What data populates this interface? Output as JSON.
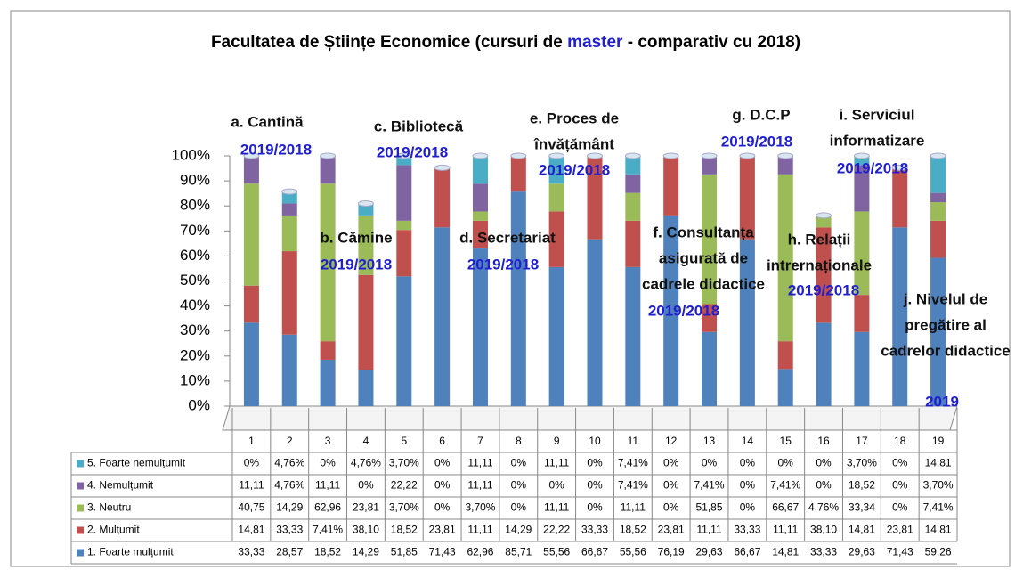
{
  "chart_data": {
    "type": "stacked_bar",
    "title_parts": [
      "Facultatea de Științe Economice (cursuri de ",
      "master",
      " - comparativ cu 2018)"
    ],
    "categories": [
      "1",
      "2",
      "3",
      "4",
      "5",
      "6",
      "7",
      "8",
      "9",
      "10",
      "11",
      "12",
      "13",
      "14",
      "15",
      "16",
      "17",
      "18",
      "19"
    ],
    "series": [
      {
        "name": "1. Foarte mulțumit",
        "color": "#4f81bd",
        "values": [
          33.33,
          28.57,
          18.52,
          14.29,
          51.85,
          71.43,
          62.96,
          85.71,
          55.56,
          66.67,
          55.56,
          76.19,
          29.63,
          66.67,
          14.81,
          33.33,
          29.63,
          71.43,
          59.26
        ],
        "value_labels": [
          "33,33",
          "28,57",
          "18,52",
          "14,29",
          "51,85",
          "71,43",
          "62,96",
          "85,71",
          "55,56",
          "66,67",
          "55,56",
          "76,19",
          "29,63",
          "66,67",
          "14,81",
          "33,33",
          "29,63",
          "71,43",
          "59,26"
        ]
      },
      {
        "name": "2. Mulțumit",
        "color": "#c0504d",
        "values": [
          14.81,
          33.33,
          7.41,
          38.1,
          18.52,
          23.81,
          11.11,
          14.29,
          22.22,
          33.33,
          18.52,
          23.81,
          11.11,
          33.33,
          11.11,
          38.1,
          14.81,
          23.81,
          14.81
        ],
        "value_labels": [
          "14,81",
          "33,33",
          "7,41%",
          "38,10",
          "18,52",
          "23,81",
          "11,11",
          "14,29",
          "22,22",
          "33,33",
          "18,52",
          "23,81",
          "11,11",
          "33,33",
          "11,11",
          "38,10",
          "14,81",
          "23,81",
          "14,81"
        ]
      },
      {
        "name": "3. Neutru",
        "color": "#9bbb59",
        "values": [
          40.75,
          14.29,
          62.96,
          23.81,
          3.7,
          0,
          3.7,
          0,
          11.11,
          0,
          11.11,
          0,
          51.85,
          0,
          66.67,
          4.76,
          33.34,
          0,
          7.41
        ],
        "value_labels": [
          "40,75",
          "14,29",
          "62,96",
          "23,81",
          "3,70%",
          "0%",
          "3,70%",
          "0%",
          "11,11",
          "0%",
          "11,11",
          "0%",
          "51,85",
          "0%",
          "66,67",
          "4,76%",
          "33,34",
          "0%",
          "7,41%"
        ]
      },
      {
        "name": "4. Nemulțumit",
        "color": "#8064a2",
        "values": [
          11.11,
          4.76,
          11.11,
          0,
          22.22,
          0,
          11.11,
          0,
          0,
          0,
          7.41,
          0,
          7.41,
          0,
          7.41,
          0,
          18.52,
          0,
          3.7
        ],
        "value_labels": [
          "11,11",
          "4,76%",
          "11,11",
          "0%",
          "22,22",
          "0%",
          "11,11",
          "0%",
          "0%",
          "0%",
          "7,41%",
          "0%",
          "7,41%",
          "0%",
          "7,41%",
          "0%",
          "18,52",
          "0%",
          "3,70%"
        ]
      },
      {
        "name": "5. Foarte nemulțumit",
        "color": "#4bacc6",
        "values": [
          0,
          4.76,
          0,
          4.76,
          3.7,
          0,
          11.11,
          0,
          11.11,
          0,
          7.41,
          0,
          0,
          0,
          0,
          0,
          3.7,
          0,
          14.81
        ],
        "value_labels": [
          "0%",
          "4,76%",
          "0%",
          "4,76%",
          "3,70%",
          "0%",
          "11,11",
          "0%",
          "11,11",
          "0%",
          "7,41%",
          "0%",
          "0%",
          "0%",
          "0%",
          "0%",
          "3,70%",
          "0%",
          "14,81"
        ]
      }
    ],
    "ylim": [
      0,
      100
    ],
    "yticks": [
      {
        "value": 0,
        "label": "0%"
      },
      {
        "value": 10,
        "label": "10%"
      },
      {
        "value": 20,
        "label": "20%"
      },
      {
        "value": 30,
        "label": "30%"
      },
      {
        "value": 40,
        "label": "40%"
      },
      {
        "value": 50,
        "label": "50%"
      },
      {
        "value": 60,
        "label": "60%"
      },
      {
        "value": 70,
        "label": "70%"
      },
      {
        "value": 80,
        "label": "80%"
      },
      {
        "value": 90,
        "label": "90%"
      },
      {
        "value": 100,
        "label": "100%"
      }
    ],
    "grid": false,
    "annotations": [
      {
        "lines": [
          "a. Cantină"
        ],
        "year": "2019/2018"
      },
      {
        "lines": [
          "b. Cămine"
        ],
        "year": "2019/2018"
      },
      {
        "lines": [
          "c. Bibliotecă"
        ],
        "year": "2019/2018"
      },
      {
        "lines": [
          "d. Secretariat"
        ],
        "year": "2019/2018"
      },
      {
        "lines": [
          "e. Proces de",
          "învățământ"
        ],
        "year": "2019/2018"
      },
      {
        "lines": [
          "f. Consultanța",
          "asigurată de",
          "cadrele didactice"
        ],
        "year": "2019/2018"
      },
      {
        "lines": [
          "g. D.C.P"
        ],
        "year": "2019/2018"
      },
      {
        "lines": [
          "h. Relații",
          "intrernaționale"
        ],
        "year": "2019/2018"
      },
      {
        "lines": [
          "i. Serviciul",
          "informatizare"
        ],
        "year": "2019/2018"
      },
      {
        "lines": [
          "j. Nivelul de",
          "pregătire al",
          "cadrelor didactice"
        ],
        "year": "2019"
      }
    ]
  }
}
